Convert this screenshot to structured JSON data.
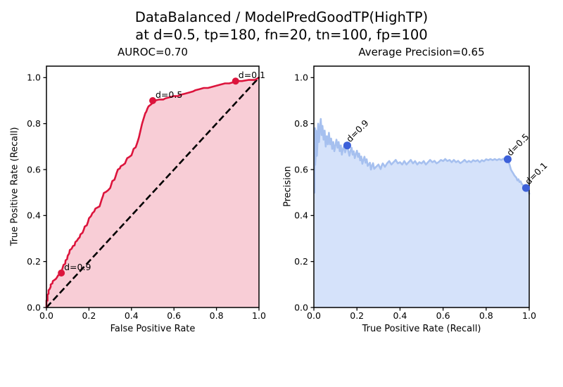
{
  "figure": {
    "title_line1": "DataBalanced / ModelPredGoodTP(HighTP)",
    "title_line2": "at d=0.5, tp=180, fn=20, tn=100, fp=100",
    "background_color": "#ffffff",
    "text_color": "#000000"
  },
  "chart_data": [
    {
      "id": "roc",
      "type": "line",
      "title": "AUROC=0.70",
      "xlabel": "False Positive Rate",
      "ylabel": "True Positive Rate (Recall)",
      "xlim": [
        0,
        1
      ],
      "ylim": [
        0,
        1.05
      ],
      "xticks": [
        0,
        0.2,
        0.4,
        0.6,
        0.8,
        1.0
      ],
      "xtick_labels": [
        "0.0",
        "0.2",
        "0.4",
        "0.6",
        "0.8",
        "1.0"
      ],
      "yticks": [
        0,
        0.2,
        0.4,
        0.6,
        0.8,
        1.0
      ],
      "ytick_labels": [
        "0.0",
        "0.2",
        "0.4",
        "0.6",
        "0.8",
        "1.0"
      ],
      "grid": false,
      "legend": null,
      "line_color": "#dc143c",
      "fill_color": "rgba(220,20,60,0.21)",
      "marker_color": "#dc143c",
      "diagonal": true,
      "diagonal_color": "#000000",
      "points": [
        [
          0,
          0
        ],
        [
          0,
          0.03
        ],
        [
          0.005,
          0.03
        ],
        [
          0.005,
          0.055
        ],
        [
          0.01,
          0.06
        ],
        [
          0.01,
          0.075
        ],
        [
          0.015,
          0.08
        ],
        [
          0.02,
          0.09
        ],
        [
          0.02,
          0.1
        ],
        [
          0.028,
          0.105
        ],
        [
          0.03,
          0.115
        ],
        [
          0.038,
          0.12
        ],
        [
          0.045,
          0.125
        ],
        [
          0.05,
          0.132
        ],
        [
          0.055,
          0.14
        ],
        [
          0.062,
          0.142
        ],
        [
          0.07,
          0.15
        ],
        [
          0.074,
          0.165
        ],
        [
          0.08,
          0.185
        ],
        [
          0.088,
          0.19
        ],
        [
          0.09,
          0.205
        ],
        [
          0.097,
          0.21
        ],
        [
          0.1,
          0.225
        ],
        [
          0.107,
          0.235
        ],
        [
          0.11,
          0.25
        ],
        [
          0.118,
          0.255
        ],
        [
          0.125,
          0.268
        ],
        [
          0.132,
          0.27
        ],
        [
          0.136,
          0.285
        ],
        [
          0.143,
          0.29
        ],
        [
          0.15,
          0.3
        ],
        [
          0.156,
          0.305
        ],
        [
          0.16,
          0.318
        ],
        [
          0.17,
          0.325
        ],
        [
          0.176,
          0.34
        ],
        [
          0.18,
          0.352
        ],
        [
          0.19,
          0.358
        ],
        [
          0.196,
          0.374
        ],
        [
          0.2,
          0.388
        ],
        [
          0.21,
          0.398
        ],
        [
          0.216,
          0.41
        ],
        [
          0.225,
          0.418
        ],
        [
          0.23,
          0.43
        ],
        [
          0.24,
          0.435
        ],
        [
          0.25,
          0.44
        ],
        [
          0.255,
          0.455
        ],
        [
          0.26,
          0.47
        ],
        [
          0.266,
          0.485
        ],
        [
          0.27,
          0.498
        ],
        [
          0.28,
          0.503
        ],
        [
          0.29,
          0.51
        ],
        [
          0.3,
          0.52
        ],
        [
          0.305,
          0.535
        ],
        [
          0.31,
          0.55
        ],
        [
          0.32,
          0.556
        ],
        [
          0.325,
          0.57
        ],
        [
          0.33,
          0.585
        ],
        [
          0.336,
          0.6
        ],
        [
          0.345,
          0.605
        ],
        [
          0.35,
          0.615
        ],
        [
          0.36,
          0.62
        ],
        [
          0.37,
          0.627
        ],
        [
          0.375,
          0.64
        ],
        [
          0.38,
          0.65
        ],
        [
          0.39,
          0.655
        ],
        [
          0.4,
          0.662
        ],
        [
          0.405,
          0.675
        ],
        [
          0.41,
          0.69
        ],
        [
          0.42,
          0.697
        ],
        [
          0.425,
          0.71
        ],
        [
          0.43,
          0.725
        ],
        [
          0.435,
          0.74
        ],
        [
          0.44,
          0.76
        ],
        [
          0.445,
          0.78
        ],
        [
          0.45,
          0.8
        ],
        [
          0.455,
          0.815
        ],
        [
          0.46,
          0.83
        ],
        [
          0.465,
          0.845
        ],
        [
          0.47,
          0.852
        ],
        [
          0.475,
          0.865
        ],
        [
          0.48,
          0.875
        ],
        [
          0.49,
          0.882
        ],
        [
          0.5,
          0.89
        ],
        [
          0.5,
          0.9
        ],
        [
          0.51,
          0.9
        ],
        [
          0.53,
          0.905
        ],
        [
          0.55,
          0.905
        ],
        [
          0.56,
          0.91
        ],
        [
          0.58,
          0.915
        ],
        [
          0.6,
          0.92
        ],
        [
          0.62,
          0.92
        ],
        [
          0.63,
          0.925
        ],
        [
          0.65,
          0.93
        ],
        [
          0.67,
          0.935
        ],
        [
          0.69,
          0.94
        ],
        [
          0.7,
          0.945
        ],
        [
          0.72,
          0.95
        ],
        [
          0.74,
          0.955
        ],
        [
          0.76,
          0.955
        ],
        [
          0.78,
          0.96
        ],
        [
          0.8,
          0.965
        ],
        [
          0.82,
          0.97
        ],
        [
          0.84,
          0.975
        ],
        [
          0.86,
          0.975
        ],
        [
          0.88,
          0.98
        ],
        [
          0.89,
          0.985
        ],
        [
          0.92,
          0.985
        ],
        [
          0.95,
          0.99
        ],
        [
          0.98,
          0.99
        ],
        [
          1,
          1
        ]
      ],
      "markers": [
        {
          "label": "d=0.9",
          "x": 0.07,
          "y": 0.15,
          "label_rotation": 0
        },
        {
          "label": "d=0.5",
          "x": 0.5,
          "y": 0.9,
          "label_rotation": 0
        },
        {
          "label": "d=0.1",
          "x": 0.89,
          "y": 0.985,
          "label_rotation": 0
        }
      ]
    },
    {
      "id": "pr",
      "type": "line",
      "title": "Average Precision=0.65",
      "xlabel": "True Positive Rate (Recall)",
      "ylabel": "Precision",
      "xlim": [
        0,
        1
      ],
      "ylim": [
        0,
        1.05
      ],
      "xticks": [
        0,
        0.2,
        0.4,
        0.6,
        0.8,
        1.0
      ],
      "xtick_labels": [
        "0.0",
        "0.2",
        "0.4",
        "0.6",
        "0.8",
        "1.0"
      ],
      "yticks": [
        0,
        0.2,
        0.4,
        0.6,
        0.8,
        1.0
      ],
      "ytick_labels": [
        "0.0",
        "0.2",
        "0.4",
        "0.6",
        "0.8",
        "1.0"
      ],
      "grid": false,
      "legend": null,
      "line_color": "#a6c0ef",
      "fill_color": "rgba(100,149,237,0.27)",
      "marker_color": "#3c60d9",
      "diagonal": false,
      "diagonal_color": "#000000",
      "points": [
        [
          0.003,
          0.5
        ],
        [
          0.003,
          0.72
        ],
        [
          0.006,
          0.78
        ],
        [
          0.006,
          0.62
        ],
        [
          0.01,
          0.7
        ],
        [
          0.01,
          0.77
        ],
        [
          0.014,
          0.66
        ],
        [
          0.018,
          0.74
        ],
        [
          0.02,
          0.8
        ],
        [
          0.024,
          0.72
        ],
        [
          0.028,
          0.78
        ],
        [
          0.032,
          0.82
        ],
        [
          0.036,
          0.75
        ],
        [
          0.04,
          0.79
        ],
        [
          0.045,
          0.73
        ],
        [
          0.05,
          0.77
        ],
        [
          0.055,
          0.7
        ],
        [
          0.06,
          0.745
        ],
        [
          0.065,
          0.71
        ],
        [
          0.07,
          0.76
        ],
        [
          0.075,
          0.71
        ],
        [
          0.08,
          0.735
        ],
        [
          0.085,
          0.69
        ],
        [
          0.09,
          0.72
        ],
        [
          0.095,
          0.68
        ],
        [
          0.1,
          0.705
        ],
        [
          0.105,
          0.73
        ],
        [
          0.11,
          0.695
        ],
        [
          0.115,
          0.72
        ],
        [
          0.12,
          0.68
        ],
        [
          0.125,
          0.705
        ],
        [
          0.13,
          0.665
        ],
        [
          0.135,
          0.69
        ],
        [
          0.14,
          0.7
        ],
        [
          0.145,
          0.675
        ],
        [
          0.15,
          0.693
        ],
        [
          0.155,
          0.705
        ],
        [
          0.16,
          0.68
        ],
        [
          0.165,
          0.66
        ],
        [
          0.17,
          0.682
        ],
        [
          0.175,
          0.695
        ],
        [
          0.18,
          0.665
        ],
        [
          0.185,
          0.68
        ],
        [
          0.19,
          0.65
        ],
        [
          0.195,
          0.668
        ],
        [
          0.2,
          0.682
        ],
        [
          0.205,
          0.655
        ],
        [
          0.21,
          0.67
        ],
        [
          0.215,
          0.64
        ],
        [
          0.22,
          0.657
        ],
        [
          0.225,
          0.625
        ],
        [
          0.23,
          0.642
        ],
        [
          0.235,
          0.656
        ],
        [
          0.24,
          0.63
        ],
        [
          0.245,
          0.645
        ],
        [
          0.25,
          0.616
        ],
        [
          0.26,
          0.63
        ],
        [
          0.265,
          0.6
        ],
        [
          0.27,
          0.617
        ],
        [
          0.275,
          0.628
        ],
        [
          0.28,
          0.603
        ],
        [
          0.29,
          0.613
        ],
        [
          0.3,
          0.622
        ],
        [
          0.31,
          0.602
        ],
        [
          0.315,
          0.617
        ],
        [
          0.32,
          0.627
        ],
        [
          0.33,
          0.612
        ],
        [
          0.34,
          0.627
        ],
        [
          0.35,
          0.637
        ],
        [
          0.36,
          0.622
        ],
        [
          0.37,
          0.632
        ],
        [
          0.38,
          0.642
        ],
        [
          0.39,
          0.627
        ],
        [
          0.4,
          0.632
        ],
        [
          0.41,
          0.622
        ],
        [
          0.42,
          0.637
        ],
        [
          0.43,
          0.622
        ],
        [
          0.44,
          0.632
        ],
        [
          0.45,
          0.642
        ],
        [
          0.46,
          0.627
        ],
        [
          0.47,
          0.637
        ],
        [
          0.48,
          0.622
        ],
        [
          0.49,
          0.632
        ],
        [
          0.5,
          0.627
        ],
        [
          0.51,
          0.637
        ],
        [
          0.52,
          0.622
        ],
        [
          0.53,
          0.632
        ],
        [
          0.54,
          0.642
        ],
        [
          0.55,
          0.632
        ],
        [
          0.56,
          0.638
        ],
        [
          0.57,
          0.627
        ],
        [
          0.58,
          0.633
        ],
        [
          0.59,
          0.642
        ],
        [
          0.6,
          0.637
        ],
        [
          0.61,
          0.646
        ],
        [
          0.62,
          0.637
        ],
        [
          0.63,
          0.642
        ],
        [
          0.64,
          0.632
        ],
        [
          0.65,
          0.642
        ],
        [
          0.66,
          0.632
        ],
        [
          0.67,
          0.638
        ],
        [
          0.68,
          0.628
        ],
        [
          0.69,
          0.634
        ],
        [
          0.7,
          0.642
        ],
        [
          0.71,
          0.632
        ],
        [
          0.72,
          0.638
        ],
        [
          0.73,
          0.632
        ],
        [
          0.74,
          0.641
        ],
        [
          0.75,
          0.636
        ],
        [
          0.76,
          0.641
        ],
        [
          0.77,
          0.632
        ],
        [
          0.78,
          0.641
        ],
        [
          0.79,
          0.636
        ],
        [
          0.8,
          0.645
        ],
        [
          0.81,
          0.641
        ],
        [
          0.82,
          0.646
        ],
        [
          0.83,
          0.641
        ],
        [
          0.84,
          0.646
        ],
        [
          0.85,
          0.641
        ],
        [
          0.86,
          0.646
        ],
        [
          0.87,
          0.642
        ],
        [
          0.88,
          0.647
        ],
        [
          0.89,
          0.643
        ],
        [
          0.9,
          0.645
        ],
        [
          0.905,
          0.632
        ],
        [
          0.91,
          0.617
        ],
        [
          0.915,
          0.6
        ],
        [
          0.92,
          0.592
        ],
        [
          0.925,
          0.585
        ],
        [
          0.93,
          0.576
        ],
        [
          0.935,
          0.57
        ],
        [
          0.94,
          0.565
        ],
        [
          0.945,
          0.553
        ],
        [
          0.95,
          0.558
        ],
        [
          0.955,
          0.546
        ],
        [
          0.96,
          0.549
        ],
        [
          0.965,
          0.538
        ],
        [
          0.97,
          0.533
        ],
        [
          0.975,
          0.526
        ],
        [
          0.98,
          0.52
        ],
        [
          0.985,
          0.52
        ],
        [
          0.99,
          0.511
        ],
        [
          0.995,
          0.505
        ],
        [
          1,
          0.495
        ]
      ],
      "markers": [
        {
          "label": "d=0.9",
          "x": 0.155,
          "y": 0.705,
          "label_rotation": -45
        },
        {
          "label": "d=0.5",
          "x": 0.9,
          "y": 0.645,
          "label_rotation": -45
        },
        {
          "label": "d=0.1",
          "x": 0.985,
          "y": 0.52,
          "label_rotation": -45
        }
      ]
    }
  ]
}
